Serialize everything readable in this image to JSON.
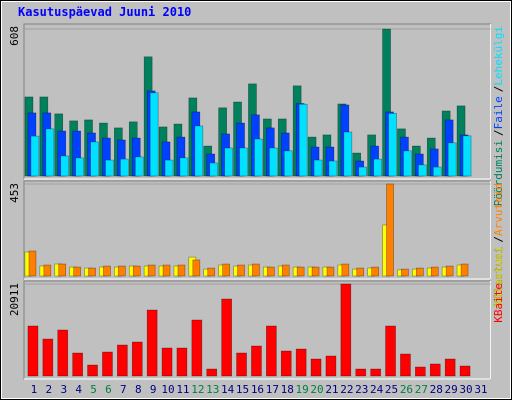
{
  "chart_data": [
    {
      "type": "bar",
      "title": "Kasutuspäevad Juuni 2010",
      "ylim": [
        0,
        608
      ],
      "yticks": [
        608
      ],
      "legend_separator": "/",
      "series": [
        {
          "name": "Pöördumisi",
          "color": "#00805c",
          "values": [
            327,
            327,
            257,
            228,
            232,
            219,
            199,
            224,
            493,
            203,
            215,
            323,
            124,
            282,
            306,
            381,
            236,
            236,
            373,
            161,
            170,
            298,
            95,
            170,
            608,
            195,
            124,
            157,
            269,
            290,
            null
          ]
        },
        {
          "name": "Faile",
          "color": "#0040ff",
          "values": [
            261,
            261,
            186,
            186,
            178,
            157,
            149,
            157,
            352,
            141,
            161,
            265,
            91,
            174,
            219,
            253,
            199,
            178,
            300,
            120,
            120,
            294,
            62,
            124,
            265,
            161,
            91,
            112,
            232,
            170,
            null
          ]
        },
        {
          "name": "Lehekülgi",
          "color": "#00e0ff",
          "values": [
            165,
            195,
            83,
            75,
            141,
            66,
            70,
            79,
            344,
            66,
            75,
            207,
            54,
            116,
            116,
            153,
            116,
            104,
            297,
            66,
            62,
            182,
            37,
            70,
            259,
            104,
            46,
            37,
            137,
            166,
            null
          ]
        }
      ]
    },
    {
      "type": "bar",
      "ylim": [
        0,
        453
      ],
      "yticks": [
        453
      ],
      "legend_separator": "/",
      "series": [
        {
          "name": "Külastusi",
          "color": "#ffff00",
          "values": [
            118,
            49,
            59,
            44,
            39,
            44,
            44,
            49,
            49,
            49,
            49,
            93,
            34,
            54,
            49,
            54,
            44,
            49,
            44,
            44,
            44,
            54,
            34,
            39,
            251,
            30,
            34,
            39,
            44,
            54,
            null
          ]
        },
        {
          "name": "Arvuteid",
          "color": "#ff8000",
          "values": [
            123,
            54,
            59,
            44,
            39,
            49,
            49,
            49,
            54,
            54,
            54,
            79,
            39,
            59,
            54,
            59,
            44,
            54,
            44,
            44,
            44,
            59,
            39,
            44,
            453,
            34,
            39,
            44,
            49,
            59,
            null
          ]
        }
      ]
    },
    {
      "type": "bar",
      "ylim": [
        0,
        20911
      ],
      "yticks": [
        20911
      ],
      "categories": [
        "1",
        "2",
        "3",
        "4",
        "5",
        "6",
        "7",
        "8",
        "9",
        "10",
        "11",
        "12",
        "13",
        "14",
        "15",
        "16",
        "17",
        "18",
        "19",
        "20",
        "21",
        "22",
        "23",
        "24",
        "25",
        "26",
        "27",
        "28",
        "29",
        "30",
        "31"
      ],
      "category_colors": [
        "#000080",
        "#000080",
        "#000080",
        "#000080",
        "#008040",
        "#008040",
        "#000080",
        "#000080",
        "#000080",
        "#000080",
        "#000080",
        "#008040",
        "#008040",
        "#000080",
        "#000080",
        "#000080",
        "#000080",
        "#000080",
        "#008040",
        "#008040",
        "#000080",
        "#000080",
        "#000080",
        "#000080",
        "#000080",
        "#008040",
        "#008040",
        "#000080",
        "#000080",
        "#000080",
        "#000080"
      ],
      "series": [
        {
          "name": "KBaite",
          "color": "#ff0000",
          "values": [
            11365,
            8410,
            10455,
            5228,
            2500,
            5455,
            7046,
            7728,
            15000,
            6364,
            6364,
            12728,
            1591,
            17500,
            5228,
            6819,
            11365,
            5682,
            6137,
            3864,
            4546,
            20911,
            1591,
            1591,
            11365,
            5000,
            2046,
            2728,
            3864,
            2273,
            null
          ]
        }
      ]
    }
  ]
}
